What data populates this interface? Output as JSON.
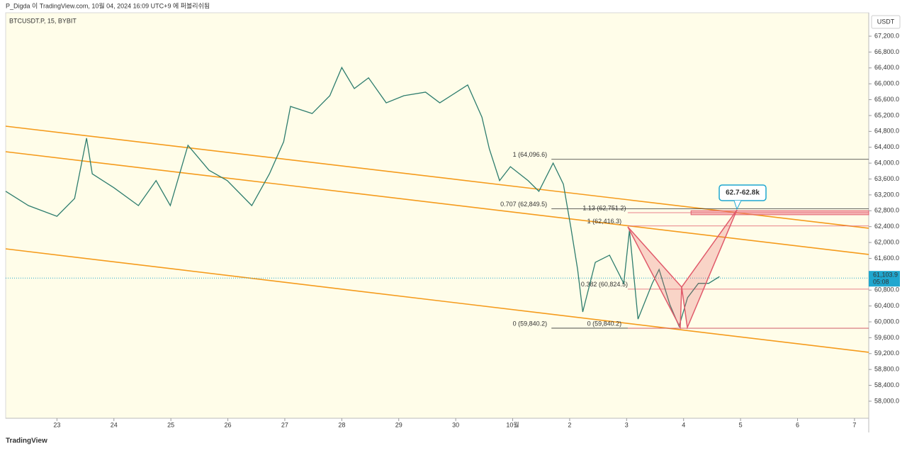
{
  "header": {
    "title": "P_Digda 이 TradingView.com, 10월 04, 2024 16:09 UTC+9 에 퍼블리쉬됨"
  },
  "footer": {
    "brand": "TradingView"
  },
  "chart_data": {
    "type": "line",
    "symbol": "BTCUSDT.P, 15, BYBIT",
    "y_unit": "USDT",
    "color": "#2e7d6e",
    "grid": false,
    "x": [
      -0.9,
      -0.5,
      0,
      0.31,
      0.52,
      0.62,
      1.0,
      1.43,
      1.74,
      1.99,
      2.3,
      2.67,
      2.99,
      3.42,
      3.73,
      3.98,
      4.1,
      4.48,
      4.79,
      5.0,
      5.22,
      5.47,
      5.78,
      6.09,
      6.47,
      6.72,
      7.21,
      7.46,
      7.59,
      7.77,
      7.96,
      8.27,
      8.46,
      8.71,
      8.89,
      9.02,
      9.14,
      9.23,
      9.45,
      9.7,
      9.95,
      10.05,
      10.2,
      10.45,
      10.57,
      10.76,
      10.92,
      11.07,
      11.26,
      11.44,
      11.63
    ],
    "values": [
      63290,
      62930,
      62660,
      63110,
      64630,
      63730,
      63380,
      62930,
      63560,
      62930,
      64450,
      63820,
      63560,
      62930,
      63730,
      64540,
      65430,
      65250,
      65700,
      66410,
      65880,
      66150,
      65520,
      65700,
      65790,
      65520,
      65970,
      65160,
      64360,
      63560,
      63910,
      63560,
      63290,
      64000,
      63470,
      62390,
      61320,
      60250,
      61500,
      61680,
      60970,
      62310,
      60070,
      60970,
      61320,
      60430,
      59890,
      60610,
      60970,
      60970,
      61140
    ],
    "xlim": [
      -0.9,
      14.25
    ],
    "xticks": [
      {
        "value": 0,
        "label": "23"
      },
      {
        "value": 1,
        "label": "24"
      },
      {
        "value": 2,
        "label": "25"
      },
      {
        "value": 3,
        "label": "26"
      },
      {
        "value": 4,
        "label": "27"
      },
      {
        "value": 5,
        "label": "28"
      },
      {
        "value": 6,
        "label": "29"
      },
      {
        "value": 7,
        "label": "30"
      },
      {
        "value": 8,
        "label": "10월"
      },
      {
        "value": 9,
        "label": "2"
      },
      {
        "value": 10,
        "label": "3"
      },
      {
        "value": 11,
        "label": "4"
      },
      {
        "value": 12,
        "label": "5"
      },
      {
        "value": 13,
        "label": "6"
      },
      {
        "value": 14,
        "label": "7"
      }
    ],
    "ylim": [
      57570,
      67790
    ],
    "yticks": [
      {
        "value": 58000,
        "label": "58,000.0"
      },
      {
        "value": 58400,
        "label": "58,400.0"
      },
      {
        "value": 58800,
        "label": "58,800.0"
      },
      {
        "value": 59200,
        "label": "59,200.0"
      },
      {
        "value": 59600,
        "label": "59,600.0"
      },
      {
        "value": 60000,
        "label": "60,000.0"
      },
      {
        "value": 60400,
        "label": "60,400.0"
      },
      {
        "value": 60800,
        "label": "60,800.0"
      },
      {
        "value": 61200,
        "label": "61,200.0"
      },
      {
        "value": 61600,
        "label": "61,600.0"
      },
      {
        "value": 62000,
        "label": "62,000.0"
      },
      {
        "value": 62400,
        "label": "62,400.0"
      },
      {
        "value": 62800,
        "label": "62,800.0"
      },
      {
        "value": 63200,
        "label": "63,200.0"
      },
      {
        "value": 63600,
        "label": "63,600.0"
      },
      {
        "value": 64000,
        "label": "64,000.0"
      },
      {
        "value": 64400,
        "label": "64,400.0"
      },
      {
        "value": 64800,
        "label": "64,800.0"
      },
      {
        "value": 65200,
        "label": "65,200.0"
      },
      {
        "value": 65600,
        "label": "65,600.0"
      },
      {
        "value": 66000,
        "label": "66,000.0"
      },
      {
        "value": 66400,
        "label": "66,400.0"
      },
      {
        "value": 66800,
        "label": "66,800.0"
      },
      {
        "value": 67200,
        "label": "67,200.0"
      }
    ],
    "trendlines": [
      {
        "color": "#f59b1c",
        "x": [
          -0.9,
          14.25
        ],
        "values": [
          64931,
          62359
        ]
      },
      {
        "color": "#f59b1c",
        "x": [
          -0.9,
          14.25
        ],
        "values": [
          64288,
          61699
        ]
      },
      {
        "color": "#f59b1c",
        "x": [
          -0.9,
          14.25
        ],
        "values": [
          61840,
          59233
        ]
      }
    ],
    "fib_main": {
      "color": "#333333",
      "start": 8.68,
      "levels": [
        {
          "value": 64096.6,
          "label": "1 (64,096.6)"
        },
        {
          "value": 62849.5,
          "label": "0.707 (62,849.5)"
        },
        {
          "value": 59840.2,
          "label": "0 (59,840.2)"
        }
      ]
    },
    "fib_pattern": {
      "color": "#e05a6a",
      "start": 10.02,
      "levels": [
        {
          "value": 62751.2,
          "label": "1.13 (62,751.2)"
        },
        {
          "value": 62416.3,
          "label": "1 (62,416.3)"
        },
        {
          "value": 60824.5,
          "label": "0.382 (60,824.5)"
        },
        {
          "value": 59840.2,
          "label": "0 (59,840.2)"
        }
      ]
    },
    "target_zone": {
      "low": 62700,
      "high": 62800,
      "start": 11.13,
      "label": "62.7-62.8k"
    },
    "last_price": {
      "value": 61103.9,
      "label": "61,103.9",
      "countdown": "05:08"
    }
  }
}
